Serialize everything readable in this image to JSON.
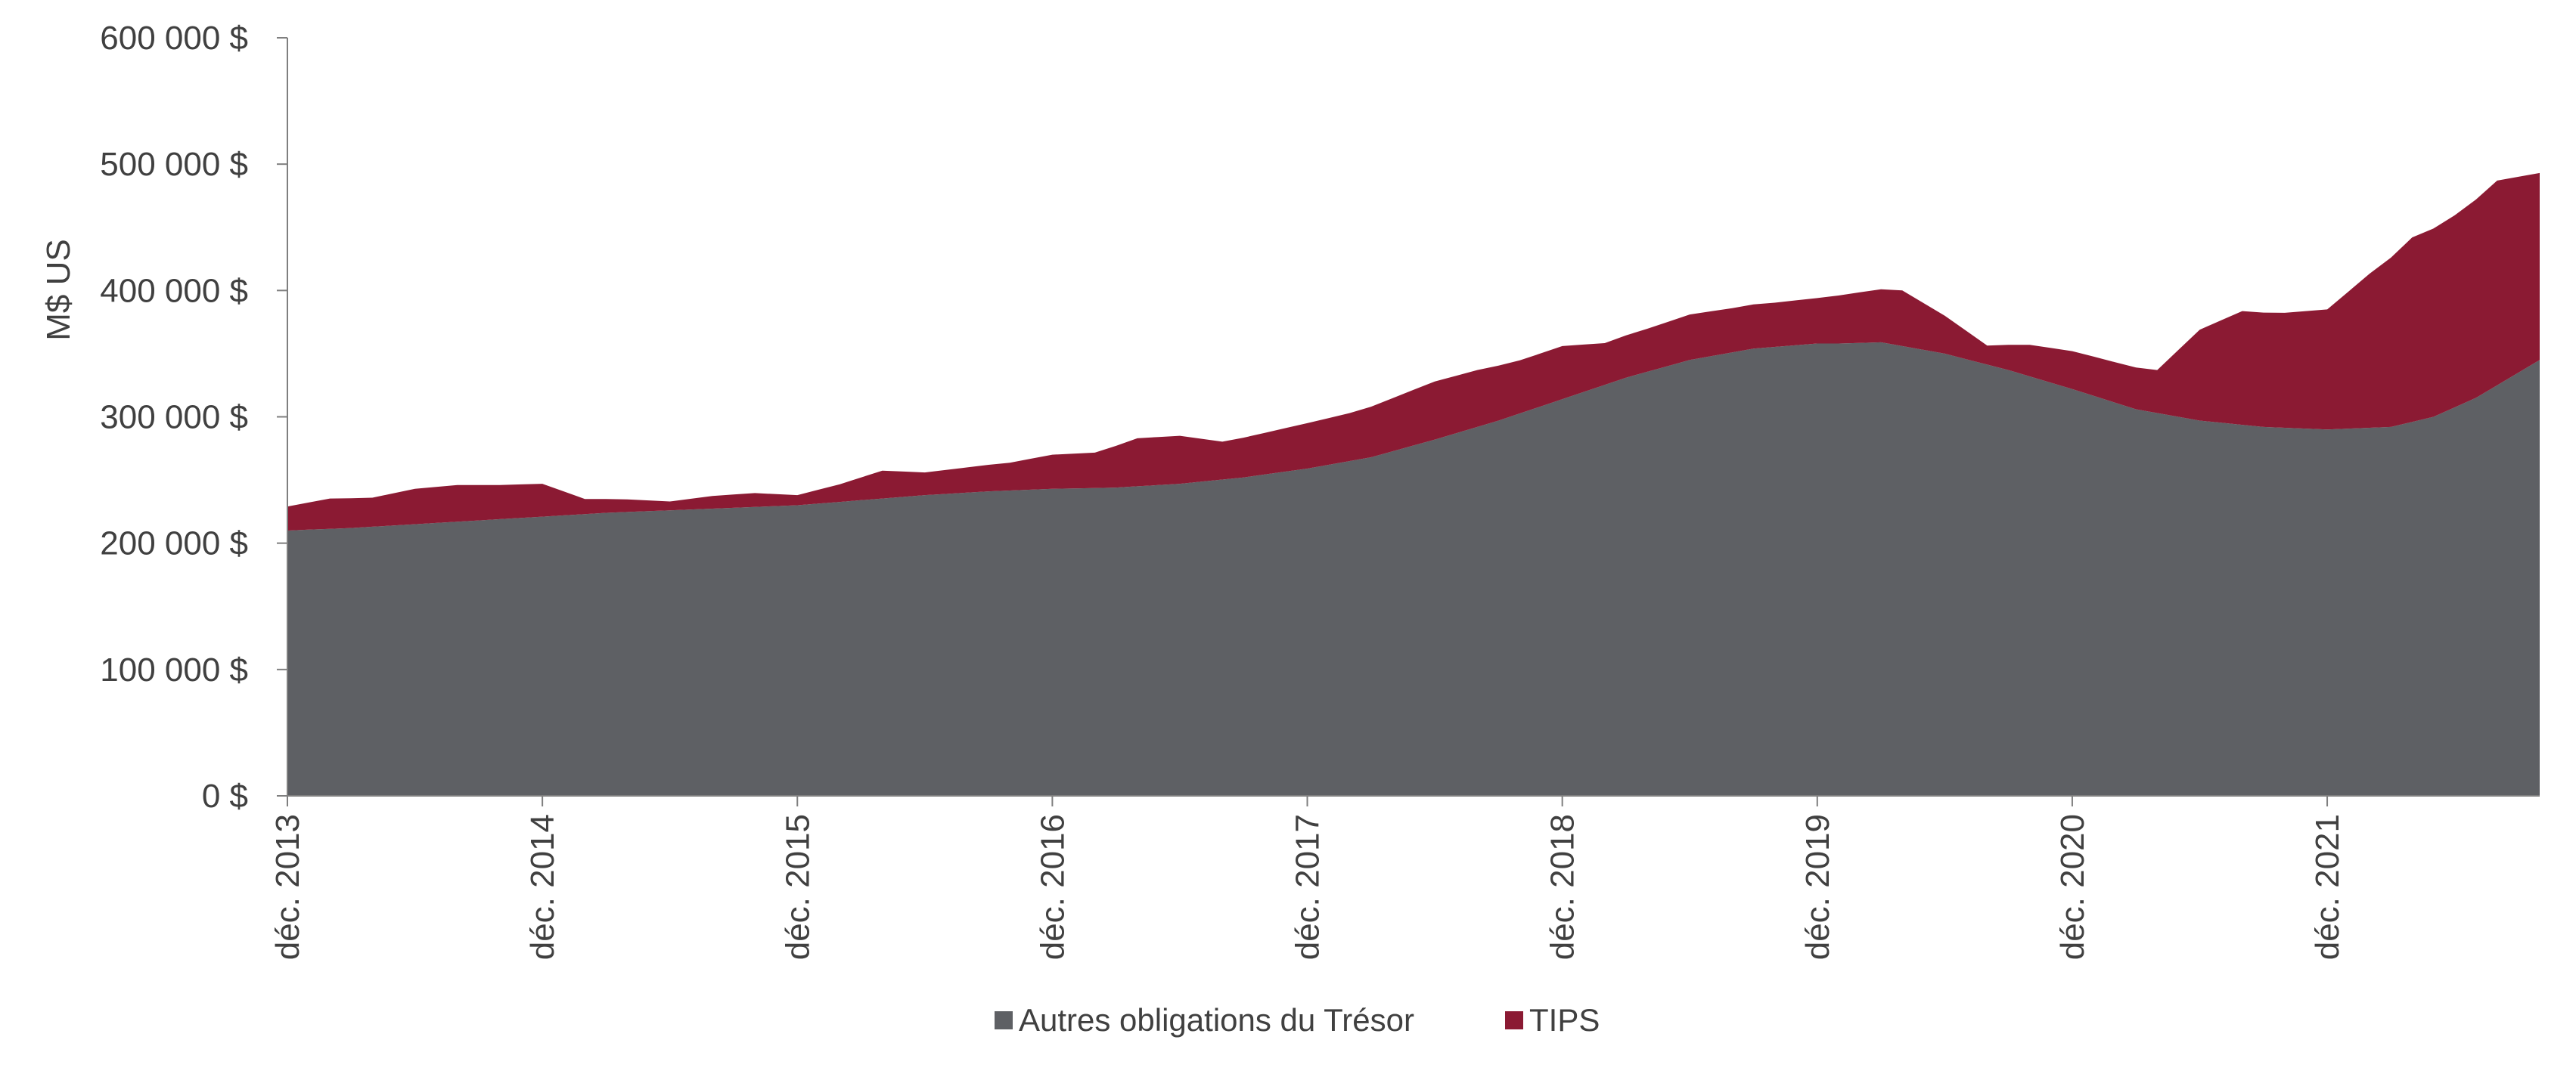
{
  "chart_data": {
    "type": "area",
    "stacked": true,
    "ylabel": "M$ US",
    "ylim": [
      0,
      600000
    ],
    "yticks": [
      {
        "value": 0,
        "label": "0 $"
      },
      {
        "value": 100000,
        "label": "100 000 $"
      },
      {
        "value": 200000,
        "label": "200 000 $"
      },
      {
        "value": 300000,
        "label": "300 000 $"
      },
      {
        "value": 400000,
        "label": "400 000 $"
      },
      {
        "value": 500000,
        "label": "500 000 $"
      },
      {
        "value": 600000,
        "label": "600 000 $"
      }
    ],
    "xticks": [
      {
        "date": "2013-12",
        "label": "déc. 2013"
      },
      {
        "date": "2014-12",
        "label": "déc. 2014"
      },
      {
        "date": "2015-12",
        "label": "déc. 2015"
      },
      {
        "date": "2016-12",
        "label": "déc. 2016"
      },
      {
        "date": "2017-12",
        "label": "déc. 2017"
      },
      {
        "date": "2018-12",
        "label": "déc. 2018"
      },
      {
        "date": "2019-12",
        "label": "déc. 2019"
      },
      {
        "date": "2020-12",
        "label": "déc. 2020"
      },
      {
        "date": "2021-12",
        "label": "déc. 2021"
      }
    ],
    "x_start": "2013-12",
    "x_end": "2022-10",
    "grid": false,
    "legend_position": "bottom-center",
    "series": [
      {
        "name": "Autres obligations du Trésor",
        "color": "#5e6064",
        "points": [
          [
            "2013-12",
            210000
          ],
          [
            "2014-03",
            212000
          ],
          [
            "2014-06",
            215000
          ],
          [
            "2014-09",
            218000
          ],
          [
            "2014-12",
            221000
          ],
          [
            "2015-03",
            224000
          ],
          [
            "2015-06",
            226000
          ],
          [
            "2015-09",
            228000
          ],
          [
            "2015-12",
            230000
          ],
          [
            "2016-03",
            234000
          ],
          [
            "2016-06",
            238000
          ],
          [
            "2016-09",
            241000
          ],
          [
            "2016-12",
            243000
          ],
          [
            "2017-03",
            244000
          ],
          [
            "2017-06",
            247000
          ],
          [
            "2017-09",
            252000
          ],
          [
            "2017-12",
            259000
          ],
          [
            "2018-03",
            268000
          ],
          [
            "2018-06",
            282000
          ],
          [
            "2018-09",
            297000
          ],
          [
            "2018-12",
            314000
          ],
          [
            "2019-03",
            331000
          ],
          [
            "2019-06",
            345000
          ],
          [
            "2019-09",
            354000
          ],
          [
            "2019-12",
            358000
          ],
          [
            "2020-01",
            358000
          ],
          [
            "2020-03",
            359000
          ],
          [
            "2020-06",
            350000
          ],
          [
            "2020-09",
            337000
          ],
          [
            "2020-12",
            322000
          ],
          [
            "2021-03",
            306000
          ],
          [
            "2021-06",
            297000
          ],
          [
            "2021-09",
            292000
          ],
          [
            "2021-12",
            290000
          ],
          [
            "2022-03",
            292000
          ],
          [
            "2022-05",
            300000
          ],
          [
            "2022-07",
            315000
          ],
          [
            "2022-10",
            345000
          ]
        ]
      },
      {
        "name": "TIPS",
        "color": "#8b1a33",
        "points": [
          [
            "2013-12",
            19000
          ],
          [
            "2014-02",
            24000
          ],
          [
            "2014-04",
            23000
          ],
          [
            "2014-06",
            28000
          ],
          [
            "2014-08",
            29000
          ],
          [
            "2014-10",
            27000
          ],
          [
            "2014-12",
            26000
          ],
          [
            "2015-02",
            12000
          ],
          [
            "2015-04",
            10000
          ],
          [
            "2015-06",
            7000
          ],
          [
            "2015-08",
            10000
          ],
          [
            "2015-10",
            11000
          ],
          [
            "2015-12",
            8000
          ],
          [
            "2016-02",
            14000
          ],
          [
            "2016-04",
            22000
          ],
          [
            "2016-06",
            18000
          ],
          [
            "2016-08",
            20000
          ],
          [
            "2016-10",
            22000
          ],
          [
            "2016-12",
            27000
          ],
          [
            "2017-02",
            28000
          ],
          [
            "2017-04",
            38000
          ],
          [
            "2017-06",
            38000
          ],
          [
            "2017-08",
            30000
          ],
          [
            "2017-10",
            33000
          ],
          [
            "2017-12",
            36000
          ],
          [
            "2018-02",
            38000
          ],
          [
            "2018-04",
            42000
          ],
          [
            "2018-06",
            46000
          ],
          [
            "2018-08",
            45000
          ],
          [
            "2018-10",
            42000
          ],
          [
            "2018-12",
            42000
          ],
          [
            "2019-02",
            33000
          ],
          [
            "2019-04",
            34000
          ],
          [
            "2019-06",
            36000
          ],
          [
            "2019-08",
            35000
          ],
          [
            "2019-10",
            35000
          ],
          [
            "2019-12",
            36000
          ],
          [
            "2020-02",
            40000
          ],
          [
            "2020-04",
            44000
          ],
          [
            "2020-06",
            30000
          ],
          [
            "2020-08",
            15000
          ],
          [
            "2020-10",
            25000
          ],
          [
            "2020-12",
            30000
          ],
          [
            "2021-02",
            32000
          ],
          [
            "2021-04",
            34000
          ],
          [
            "2021-06",
            72000
          ],
          [
            "2021-08",
            90000
          ],
          [
            "2021-10",
            91000
          ],
          [
            "2021-12",
            95000
          ],
          [
            "2022-02",
            122000
          ],
          [
            "2022-04",
            146000
          ],
          [
            "2022-06",
            152000
          ],
          [
            "2022-08",
            162000
          ],
          [
            "2022-10",
            148000
          ]
        ]
      }
    ]
  }
}
